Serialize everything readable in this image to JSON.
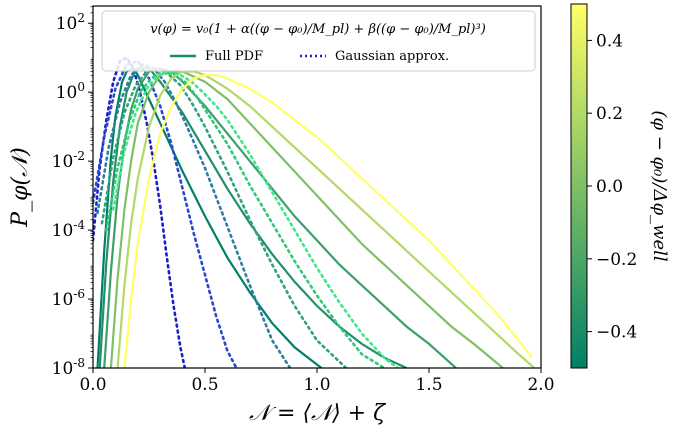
{
  "chart_data": {
    "type": "line",
    "xlabel": "𝒩 = ⟨𝒩⟩ + ζ",
    "ylabel": "P_φ(𝒩)",
    "xlim": [
      0.0,
      2.0
    ],
    "ylim_log10": [
      -8,
      2.5
    ],
    "y_scale": "log",
    "x_ticks": [
      "0.0",
      "0.5",
      "1.0",
      "1.5",
      "2.0"
    ],
    "y_ticks": [
      {
        "base": "10",
        "exp": "-8",
        "log": -8
      },
      {
        "base": "10",
        "exp": "-6",
        "log": -6
      },
      {
        "base": "10",
        "exp": "-4",
        "log": -4
      },
      {
        "base": "10",
        "exp": "-2",
        "log": -2
      },
      {
        "base": "10",
        "exp": "0",
        "log": 0
      },
      {
        "base": "10",
        "exp": "2",
        "log": 2
      }
    ],
    "legend": {
      "placement": "top",
      "formula": "v(φ) = v₀(1 + α((φ − φ₀)/M_pl) + β((φ − φ₀)/M_pl)³)",
      "entries": [
        {
          "label": "Full PDF",
          "style": "solid"
        },
        {
          "label": "Gaussian approx.",
          "style": "dotted"
        }
      ]
    },
    "colorbar": {
      "label": "(φ − φ₀)/Δφ_well",
      "range": [
        -0.5,
        0.5
      ],
      "ticks": [
        "0.4",
        "0.2",
        "0.0",
        "−0.2",
        "−0.4"
      ],
      "tick_values": [
        0.4,
        0.2,
        0.0,
        -0.2,
        -0.4
      ],
      "colormap": "summer"
    },
    "series": [
      {
        "param": -0.5,
        "color": "#008066",
        "full": {
          "x": [
            0.02,
            0.05,
            0.08,
            0.1,
            0.13,
            0.15,
            0.18,
            0.2,
            0.25,
            0.3,
            0.4,
            0.5,
            0.6,
            0.7,
            0.8,
            0.9,
            1.0,
            1.02
          ],
          "logy": [
            -8.0,
            -4.6,
            -1.9,
            -0.7,
            0.3,
            0.6,
            0.7,
            0.5,
            -0.2,
            -0.9,
            -2.3,
            -3.6,
            -4.8,
            -5.8,
            -6.7,
            -7.4,
            -7.9,
            -8.0
          ]
        },
        "gauss": {
          "x": [
            0.0,
            0.03,
            0.06,
            0.09,
            0.12,
            0.15,
            0.18,
            0.21,
            0.24,
            0.27,
            0.3,
            0.33,
            0.36,
            0.39,
            0.41
          ],
          "logy": [
            -4.3,
            -2.2,
            -0.8,
            0.3,
            0.9,
            1.0,
            0.7,
            0.0,
            -0.9,
            -2.0,
            -3.3,
            -4.8,
            -6.2,
            -7.4,
            -8.0
          ]
        }
      },
      {
        "param": -0.35,
        "color": "#228f66",
        "full": {
          "x": [
            0.03,
            0.06,
            0.09,
            0.12,
            0.15,
            0.18,
            0.2,
            0.25,
            0.3,
            0.4,
            0.5,
            0.6,
            0.7,
            0.8,
            0.9,
            1.0,
            1.1,
            1.2,
            1.3,
            1.4
          ],
          "logy": [
            -8.0,
            -4.9,
            -2.6,
            -1.0,
            0.0,
            0.5,
            0.7,
            0.7,
            0.3,
            -0.6,
            -1.7,
            -2.8,
            -3.8,
            -4.7,
            -5.5,
            -6.2,
            -6.8,
            -7.3,
            -7.7,
            -8.0
          ]
        },
        "gauss": {
          "x": [
            0.0,
            0.05,
            0.1,
            0.15,
            0.2,
            0.25,
            0.3,
            0.35,
            0.4,
            0.45,
            0.5,
            0.55,
            0.6,
            0.64
          ],
          "logy": [
            -3.2,
            -1.3,
            0.1,
            0.8,
            0.9,
            0.4,
            -0.4,
            -1.5,
            -2.8,
            -4.1,
            -5.3,
            -6.5,
            -7.5,
            -8.0
          ]
        }
      },
      {
        "param": -0.2,
        "color": "#3da066",
        "full": {
          "x": [
            0.05,
            0.08,
            0.11,
            0.14,
            0.17,
            0.2,
            0.25,
            0.3,
            0.35,
            0.4,
            0.5,
            0.6,
            0.7,
            0.8,
            0.9,
            1.0,
            1.1,
            1.2,
            1.3,
            1.4,
            1.5,
            1.62
          ],
          "logy": [
            -8.0,
            -5.2,
            -3.0,
            -1.5,
            -0.5,
            0.1,
            0.6,
            0.7,
            0.6,
            0.3,
            -0.4,
            -1.2,
            -2.0,
            -2.8,
            -3.6,
            -4.3,
            -5.0,
            -5.6,
            -6.2,
            -6.8,
            -7.3,
            -8.0
          ]
        },
        "gauss": {
          "x": [
            0.02,
            0.07,
            0.12,
            0.17,
            0.22,
            0.27,
            0.32,
            0.37,
            0.42,
            0.5,
            0.6,
            0.7,
            0.8,
            0.88
          ],
          "logy": [
            -3.5,
            -1.6,
            -0.3,
            0.5,
            0.8,
            0.7,
            0.3,
            -0.3,
            -1.0,
            -2.2,
            -3.9,
            -5.6,
            -7.2,
            -8.0
          ]
        }
      },
      {
        "param": 0.0,
        "color": "#7fbf66",
        "full": {
          "x": [
            0.08,
            0.11,
            0.14,
            0.17,
            0.2,
            0.25,
            0.3,
            0.35,
            0.4,
            0.5,
            0.6,
            0.7,
            0.8,
            0.9,
            1.0,
            1.1,
            1.2,
            1.3,
            1.4,
            1.5,
            1.6,
            1.7,
            1.83
          ],
          "logy": [
            -8.0,
            -5.4,
            -3.4,
            -2.0,
            -0.9,
            0.0,
            0.5,
            0.6,
            0.6,
            0.3,
            -0.2,
            -0.9,
            -1.6,
            -2.3,
            -3.0,
            -3.7,
            -4.4,
            -5.0,
            -5.6,
            -6.2,
            -6.8,
            -7.3,
            -8.0
          ]
        },
        "gauss": {
          "x": [
            0.04,
            0.09,
            0.14,
            0.19,
            0.24,
            0.29,
            0.34,
            0.39,
            0.44,
            0.5,
            0.6,
            0.7,
            0.8,
            0.9,
            1.0,
            1.13
          ],
          "logy": [
            -3.8,
            -1.9,
            -0.6,
            0.2,
            0.6,
            0.7,
            0.5,
            0.2,
            -0.3,
            -1.0,
            -2.3,
            -3.7,
            -5.0,
            -6.2,
            -7.2,
            -8.0
          ]
        }
      },
      {
        "param": 0.2,
        "color": "#b2d966",
        "full": {
          "x": [
            0.11,
            0.14,
            0.17,
            0.2,
            0.25,
            0.3,
            0.35,
            0.4,
            0.45,
            0.5,
            0.6,
            0.7,
            0.8,
            0.9,
            1.0,
            1.1,
            1.2,
            1.3,
            1.4,
            1.5,
            1.6,
            1.7,
            1.8,
            1.9,
            1.97
          ],
          "logy": [
            -8.0,
            -5.6,
            -3.8,
            -2.5,
            -1.0,
            -0.1,
            0.4,
            0.6,
            0.6,
            0.5,
            0.1,
            -0.4,
            -1.0,
            -1.6,
            -2.2,
            -2.8,
            -3.4,
            -4.0,
            -4.6,
            -5.2,
            -5.8,
            -6.4,
            -7.0,
            -7.6,
            -8.0
          ]
        },
        "gauss": {
          "x": [
            0.06,
            0.11,
            0.16,
            0.21,
            0.26,
            0.31,
            0.36,
            0.41,
            0.46,
            0.51,
            0.6,
            0.7,
            0.8,
            0.9,
            1.0,
            1.1,
            1.2,
            1.3
          ],
          "logy": [
            -4.0,
            -2.2,
            -0.9,
            0.0,
            0.4,
            0.6,
            0.5,
            0.3,
            -0.1,
            -0.6,
            -1.5,
            -2.7,
            -3.8,
            -4.9,
            -5.9,
            -6.8,
            -7.6,
            -8.0
          ]
        }
      },
      {
        "param": 0.5,
        "color": "#ffff66",
        "full": {
          "x": [
            0.14,
            0.17,
            0.2,
            0.25,
            0.3,
            0.35,
            0.4,
            0.45,
            0.5,
            0.55,
            0.6,
            0.7,
            0.8,
            0.9,
            1.0,
            1.1,
            1.2,
            1.3,
            1.4,
            1.5,
            1.6,
            1.7,
            1.8,
            1.9,
            1.96
          ],
          "logy": [
            -8.0,
            -6.0,
            -4.4,
            -2.5,
            -1.2,
            -0.4,
            0.1,
            0.4,
            0.5,
            0.5,
            0.4,
            0.1,
            -0.3,
            -0.8,
            -1.3,
            -1.9,
            -2.5,
            -3.1,
            -3.7,
            -4.3,
            -5.0,
            -5.7,
            -6.4,
            -7.2,
            -7.7
          ]
        },
        "gauss": {
          "x": [
            0.09,
            0.14,
            0.19,
            0.24,
            0.29,
            0.34,
            0.39,
            0.44,
            0.49,
            0.55,
            0.6,
            0.7,
            0.8,
            0.9,
            1.0,
            1.1,
            1.2,
            1.3,
            1.36
          ],
          "logy": [
            -3.4,
            -1.7,
            -0.6,
            0.1,
            0.5,
            0.6,
            0.5,
            0.3,
            0.0,
            -0.4,
            -0.8,
            -1.8,
            -2.9,
            -4.0,
            -5.1,
            -6.1,
            -7.0,
            -7.7,
            -8.0
          ]
        }
      }
    ],
    "gauss_colors": [
      "#1e1ec8",
      "#2a48d0",
      "#2d7fa0",
      "#2fa37f",
      "#33c77a",
      "#3ee88a"
    ]
  }
}
